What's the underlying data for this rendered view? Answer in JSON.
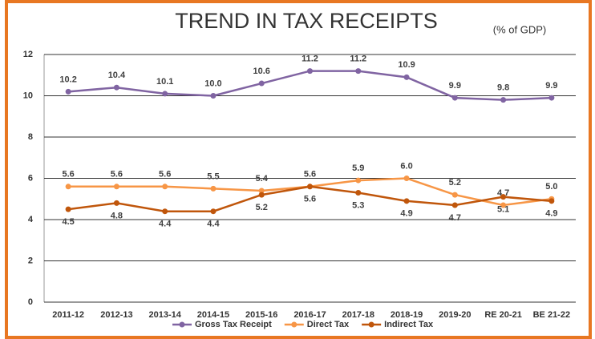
{
  "chart_data": {
    "type": "line",
    "title": "TREND IN TAX RECEIPTS",
    "subtitle": "(% of GDP)",
    "categories": [
      "2011-12",
      "2012-13",
      "2013-14",
      "2014-15",
      "2015-16",
      "2016-17",
      "2017-18",
      "2018-19",
      "2019-20",
      "RE 20-21",
      "BE 21-22"
    ],
    "series": [
      {
        "name": "Gross Tax Receipt",
        "color": "#8064a2",
        "values": [
          10.2,
          10.4,
          10.1,
          10.0,
          10.6,
          11.2,
          11.2,
          10.9,
          9.9,
          9.8,
          9.9
        ],
        "value_labels": [
          "10.2",
          "10.4",
          "10.1",
          "10.0",
          "10.6",
          "11.2",
          "11.2",
          "10.9",
          "9.9",
          "9.8",
          "9.9"
        ]
      },
      {
        "name": "Direct Tax",
        "color": "#f79646",
        "values": [
          5.6,
          5.6,
          5.6,
          5.5,
          5.4,
          5.6,
          5.9,
          6.0,
          5.2,
          4.7,
          5.0
        ],
        "value_labels": [
          "5.6",
          "5.6",
          "5.6",
          "5.5",
          "5.4",
          "5.6",
          "5.9",
          "6.0",
          "5.2",
          "4.7",
          "5.0"
        ]
      },
      {
        "name": "Indirect Tax",
        "color": "#c0560b",
        "values": [
          4.5,
          4.8,
          4.4,
          4.4,
          5.2,
          5.6,
          5.3,
          4.9,
          4.7,
          5.1,
          4.9
        ],
        "value_labels": [
          "4.5",
          "4.8",
          "4.4",
          "4.4",
          "5.2",
          "5.6",
          "5.3",
          "4.9",
          "4.7",
          "5.1",
          "4.9"
        ]
      }
    ],
    "ylim": [
      0,
      12
    ],
    "yticks": [
      0,
      2,
      4,
      6,
      8,
      10,
      12
    ],
    "grid": true,
    "legend": "bottom"
  }
}
